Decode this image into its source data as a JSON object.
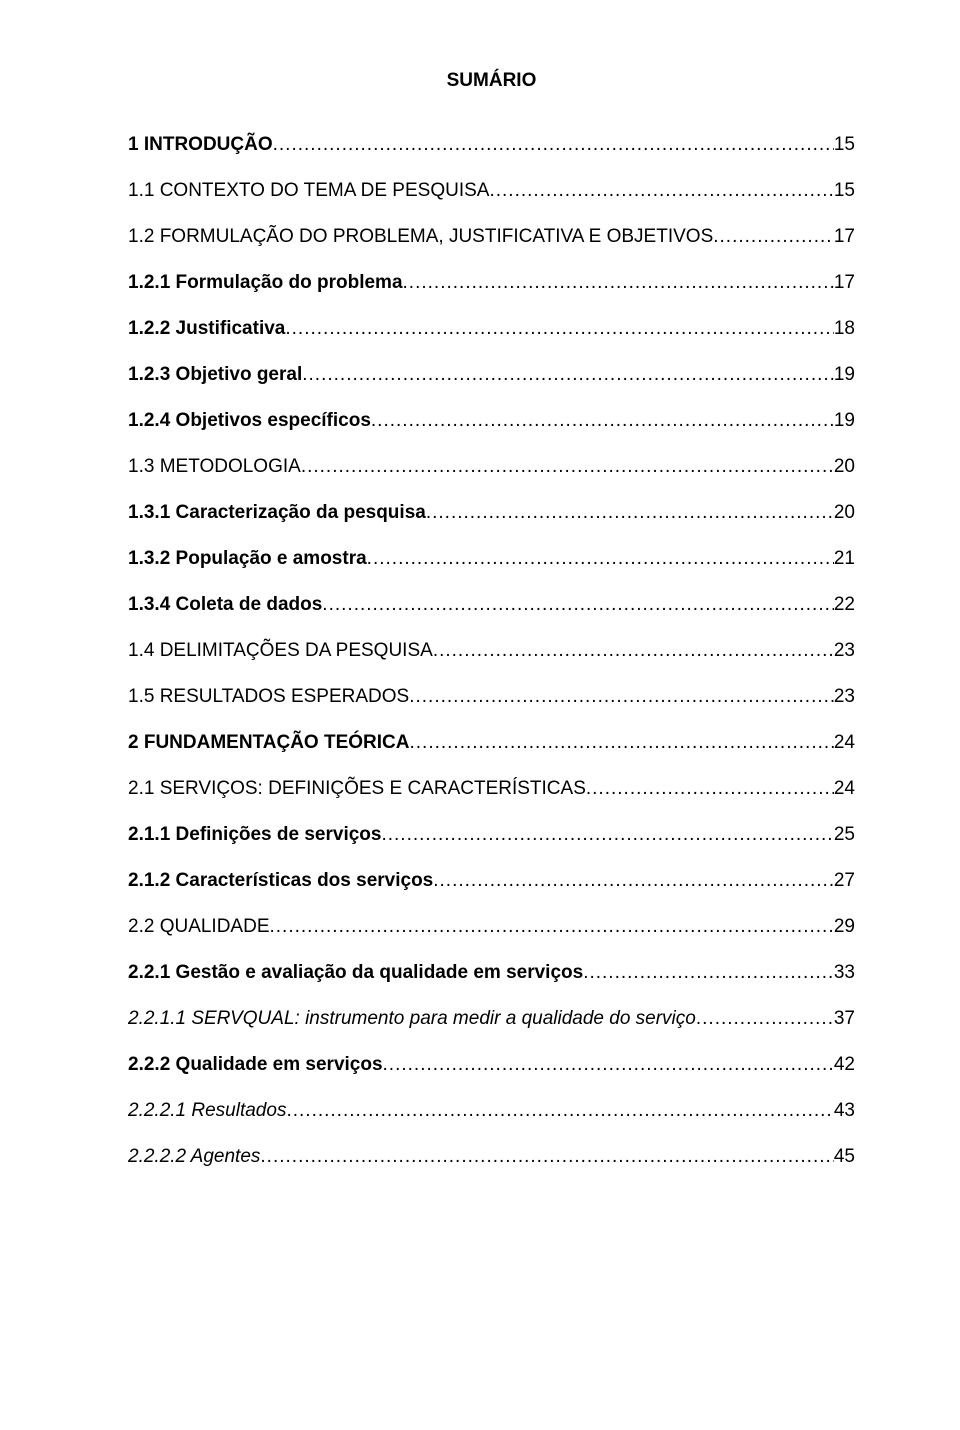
{
  "title": "SUMÁRIO",
  "entries": [
    {
      "label": "1 INTRODUÇÃO",
      "page": "15",
      "bold": true,
      "italic": false
    },
    {
      "label": "1.1 CONTEXTO DO TEMA DE PESQUISA",
      "page": "15",
      "bold": false,
      "italic": false
    },
    {
      "label": "1.2 FORMULAÇÃO DO PROBLEMA, JUSTIFICATIVA E OBJETIVOS",
      "page": "17",
      "bold": false,
      "italic": false
    },
    {
      "label": "1.2.1 Formulação do problema",
      "page": "17",
      "bold": true,
      "italic": false
    },
    {
      "label": "1.2.2 Justificativa",
      "page": "18",
      "bold": true,
      "italic": false
    },
    {
      "label": "1.2.3 Objetivo geral",
      "page": "19",
      "bold": true,
      "italic": false
    },
    {
      "label": "1.2.4 Objetivos específicos",
      "page": "19",
      "bold": true,
      "italic": false
    },
    {
      "label": "1.3 METODOLOGIA",
      "page": "20",
      "bold": false,
      "italic": false
    },
    {
      "label": "1.3.1 Caracterização da pesquisa",
      "page": "20",
      "bold": true,
      "italic": false
    },
    {
      "label": "1.3.2 População e amostra",
      "page": "21",
      "bold": true,
      "italic": false
    },
    {
      "label": "1.3.4 Coleta de dados",
      "page": "22",
      "bold": true,
      "italic": false
    },
    {
      "label": "1.4 DELIMITAÇÕES DA PESQUISA",
      "page": "23",
      "bold": false,
      "italic": false
    },
    {
      "label": "1.5 RESULTADOS ESPERADOS",
      "page": "23",
      "bold": false,
      "italic": false
    },
    {
      "label": "2 FUNDAMENTAÇÃO TEÓRICA",
      "page": "24",
      "bold": true,
      "italic": false
    },
    {
      "label": "2.1 SERVIÇOS: DEFINIÇÕES E CARACTERÍSTICAS",
      "page": "24",
      "bold": false,
      "italic": false
    },
    {
      "label": "2.1.1 Definições de serviços",
      "page": "25",
      "bold": true,
      "italic": false
    },
    {
      "label": "2.1.2 Características dos serviços",
      "page": "27",
      "bold": true,
      "italic": false
    },
    {
      "label": "2.2 QUALIDADE",
      "page": "29",
      "bold": false,
      "italic": false
    },
    {
      "label": "2.2.1 Gestão e avaliação da qualidade em serviços",
      "page": "33",
      "bold": true,
      "italic": false
    },
    {
      "label": "2.2.1.1 SERVQUAL: instrumento para medir a qualidade do serviço",
      "page": "37",
      "bold": false,
      "italic": true
    },
    {
      "label": "2.2.2 Qualidade em serviços",
      "page": "42",
      "bold": true,
      "italic": false
    },
    {
      "label": "2.2.2.1 Resultados",
      "page": "43",
      "bold": false,
      "italic": true
    },
    {
      "label": "2.2.2.2 Agentes",
      "page": "45",
      "bold": false,
      "italic": true
    }
  ]
}
